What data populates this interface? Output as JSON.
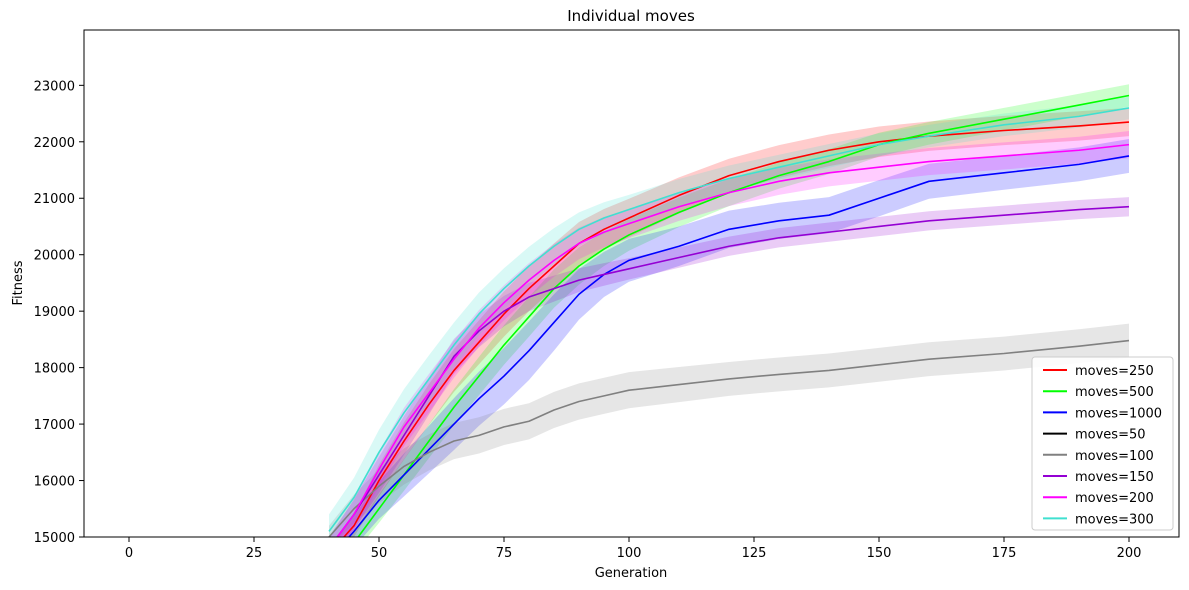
{
  "chart_data": {
    "type": "line",
    "title": "Individual moves",
    "xlabel": "Generation",
    "ylabel": "Fitness",
    "xlim": [
      -9,
      210
    ],
    "ylim": [
      15000,
      23980
    ],
    "x_ticks": [
      0,
      25,
      50,
      75,
      100,
      125,
      150,
      175,
      200
    ],
    "y_ticks": [
      15000,
      16000,
      17000,
      18000,
      19000,
      20000,
      21000,
      22000,
      23000
    ],
    "grid": false,
    "legend_position": "lower-right",
    "series": [
      {
        "name": "moves=250",
        "color": "#ff0000",
        "x": [
          40,
          45,
          50,
          55,
          60,
          65,
          70,
          75,
          80,
          85,
          90,
          95,
          100,
          110,
          120,
          130,
          140,
          150,
          160,
          175,
          190,
          200
        ],
        "y": [
          14700,
          15200,
          16000,
          16700,
          17350,
          17950,
          18450,
          18950,
          19400,
          19800,
          20200,
          20450,
          20650,
          21050,
          21400,
          21650,
          21850,
          22000,
          22100,
          22200,
          22280,
          22350
        ],
        "band": [
          150,
          200,
          280,
          330,
          360,
          380,
          390,
          400,
          400,
          400,
          380,
          360,
          340,
          320,
          300,
          290,
          280,
          270,
          260,
          260,
          260,
          250
        ]
      },
      {
        "name": "moves=500",
        "color": "#00ff00",
        "x": [
          40,
          45,
          50,
          55,
          60,
          65,
          70,
          75,
          80,
          85,
          90,
          95,
          100,
          110,
          120,
          130,
          140,
          150,
          160,
          175,
          190,
          200
        ],
        "y": [
          14400,
          14900,
          15500,
          16100,
          16700,
          17300,
          17850,
          18400,
          18900,
          19400,
          19800,
          20100,
          20350,
          20750,
          21100,
          21400,
          21650,
          21950,
          22150,
          22400,
          22650,
          22820
        ],
        "band": [
          150,
          200,
          250,
          280,
          300,
          320,
          340,
          350,
          350,
          340,
          330,
          300,
          280,
          260,
          240,
          230,
          220,
          210,
          200,
          200,
          200,
          200
        ]
      },
      {
        "name": "moves=1000",
        "color": "#0000ff",
        "x": [
          40,
          45,
          50,
          55,
          60,
          65,
          70,
          75,
          80,
          85,
          90,
          95,
          100,
          110,
          120,
          130,
          140,
          150,
          160,
          175,
          190,
          200
        ],
        "y": [
          14600,
          15100,
          15650,
          16100,
          16550,
          17000,
          17450,
          17850,
          18300,
          18800,
          19300,
          19650,
          19900,
          20150,
          20450,
          20600,
          20700,
          21000,
          21300,
          21450,
          21600,
          21750
        ],
        "band": [
          200,
          280,
          330,
          380,
          420,
          460,
          480,
          500,
          520,
          500,
          450,
          400,
          380,
          350,
          330,
          320,
          320,
          320,
          310,
          300,
          300,
          300
        ]
      },
      {
        "name": "moves=50",
        "color": "#000000",
        "x": [],
        "y": [],
        "band": []
      },
      {
        "name": "moves=100",
        "color": "#808080",
        "x": [
          40,
          45,
          50,
          55,
          60,
          65,
          70,
          75,
          80,
          85,
          90,
          95,
          100,
          110,
          120,
          130,
          140,
          150,
          160,
          175,
          190,
          200
        ],
        "y": [
          15000,
          15500,
          15900,
          16250,
          16500,
          16700,
          16800,
          16950,
          17050,
          17250,
          17400,
          17500,
          17600,
          17700,
          17800,
          17880,
          17950,
          18050,
          18150,
          18250,
          18380,
          18480
        ],
        "band": [
          200,
          250,
          300,
          320,
          320,
          320,
          320,
          320,
          320,
          320,
          320,
          320,
          320,
          310,
          300,
          300,
          300,
          300,
          300,
          300,
          300,
          300
        ]
      },
      {
        "name": "moves=150",
        "color": "#9400d3",
        "x": [
          40,
          45,
          50,
          55,
          60,
          65,
          70,
          75,
          80,
          85,
          90,
          95,
          100,
          110,
          120,
          130,
          140,
          150,
          160,
          175,
          190,
          200
        ],
        "y": [
          14800,
          15400,
          16100,
          16800,
          17500,
          18200,
          18650,
          19000,
          19250,
          19400,
          19550,
          19650,
          19750,
          19950,
          20150,
          20300,
          20400,
          20500,
          20600,
          20700,
          20800,
          20850
        ],
        "band": [
          200,
          270,
          320,
          340,
          330,
          310,
          290,
          270,
          250,
          230,
          210,
          200,
          190,
          180,
          170,
          170,
          170,
          170,
          170,
          170,
          170,
          170
        ]
      },
      {
        "name": "moves=200",
        "color": "#ff00ff",
        "x": [
          40,
          45,
          50,
          55,
          60,
          65,
          70,
          75,
          80,
          85,
          90,
          95,
          100,
          110,
          120,
          130,
          140,
          150,
          160,
          175,
          190,
          200
        ],
        "y": [
          14800,
          15400,
          16200,
          16950,
          17550,
          18150,
          18700,
          19150,
          19550,
          19900,
          20200,
          20400,
          20550,
          20850,
          21100,
          21300,
          21450,
          21550,
          21650,
          21750,
          21850,
          21950
        ],
        "band": [
          200,
          260,
          320,
          340,
          340,
          330,
          320,
          310,
          300,
          290,
          280,
          270,
          260,
          250,
          240,
          240,
          240,
          240,
          240,
          240,
          240,
          240
        ]
      },
      {
        "name": "moves=300",
        "color": "#40e0d0",
        "x": [
          40,
          45,
          50,
          55,
          60,
          65,
          70,
          75,
          80,
          85,
          90,
          95,
          100,
          110,
          120,
          130,
          140,
          150,
          160,
          175,
          190,
          200
        ],
        "y": [
          15100,
          15700,
          16500,
          17200,
          17800,
          18400,
          18950,
          19400,
          19800,
          20150,
          20450,
          20650,
          20800,
          21100,
          21350,
          21550,
          21750,
          21950,
          22100,
          22300,
          22450,
          22600
        ],
        "band": [
          300,
          350,
          400,
          420,
          420,
          400,
          380,
          360,
          340,
          320,
          300,
          280,
          260,
          240,
          230,
          220,
          210,
          200,
          200,
          200,
          200,
          200
        ]
      }
    ]
  }
}
